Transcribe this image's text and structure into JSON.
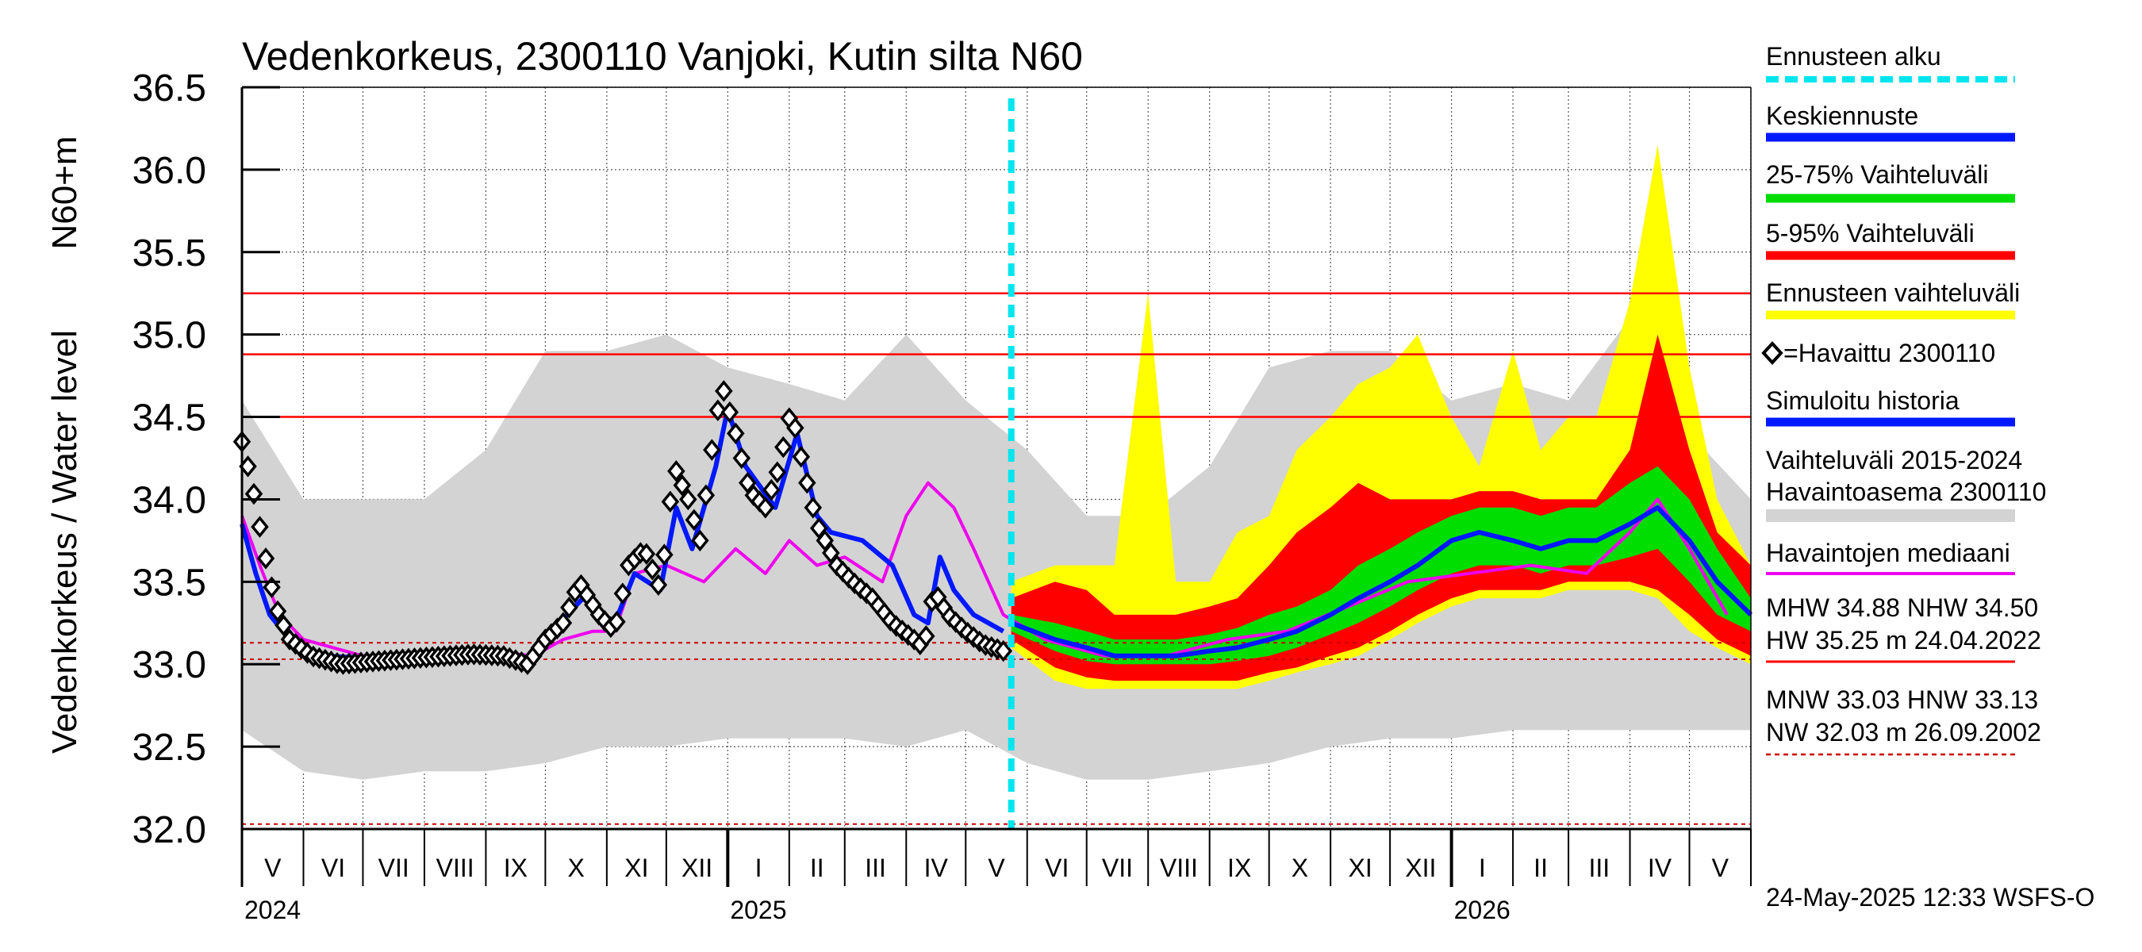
{
  "chart_data": {
    "type": "line",
    "title": "Vedenkorkeus, 2300110 Vanjoki, Kutin silta N60",
    "ylabel": "Vedenkorkeus / Water level",
    "yunit": "N60+m",
    "ylim": [
      32.0,
      36.5
    ],
    "yticks": [
      "32.0",
      "32.5",
      "33.0",
      "33.5",
      "34.0",
      "34.5",
      "35.0",
      "35.5",
      "36.0",
      "36.5"
    ],
    "grid": true,
    "legend_position": "right",
    "x_start": "2024-05-01",
    "x_end": "2026-06-01",
    "forecast_start": "2025-05-24",
    "month_labels": [
      "V",
      "VI",
      "VII",
      "VIII",
      "IX",
      "X",
      "XI",
      "XII",
      "I",
      "II",
      "III",
      "IV",
      "V",
      "VI",
      "VII",
      "VIII",
      "IX",
      "X",
      "XI",
      "XII",
      "I",
      "II",
      "III",
      "IV",
      "V"
    ],
    "year_labels": [
      {
        "label": "2024",
        "date": "2024-05-01"
      },
      {
        "label": "2025",
        "date": "2025-01-01"
      },
      {
        "label": "2026",
        "date": "2026-01-01"
      }
    ],
    "reference_lines": [
      {
        "name": "HW",
        "value": 35.25,
        "style": "solid",
        "color": "#ff0000"
      },
      {
        "name": "MHW",
        "value": 34.88,
        "style": "solid",
        "color": "#ff0000"
      },
      {
        "name": "NHW",
        "value": 34.5,
        "style": "solid",
        "color": "#ff0000"
      },
      {
        "name": "HNW",
        "value": 33.13,
        "style": "dashed",
        "color": "#cc0000"
      },
      {
        "name": "MNW",
        "value": 33.03,
        "style": "dashed",
        "color": "#cc0000"
      },
      {
        "name": "NW",
        "value": 32.03,
        "style": "dashed",
        "color": "#cc0000"
      }
    ],
    "observed": [
      [
        "2024-05-01",
        34.35
      ],
      [
        "2024-05-06",
        34.1
      ],
      [
        "2024-05-12",
        33.7
      ],
      [
        "2024-05-18",
        33.35
      ],
      [
        "2024-05-25",
        33.15
      ],
      [
        "2024-06-05",
        33.05
      ],
      [
        "2024-06-20",
        33.0
      ],
      [
        "2024-07-10",
        33.02
      ],
      [
        "2024-08-01",
        33.04
      ],
      [
        "2024-08-25",
        33.06
      ],
      [
        "2024-09-10",
        33.05
      ],
      [
        "2024-09-22",
        33.0
      ],
      [
        "2024-10-01",
        33.15
      ],
      [
        "2024-10-10",
        33.25
      ],
      [
        "2024-10-18",
        33.5
      ],
      [
        "2024-10-28",
        33.3
      ],
      [
        "2024-11-05",
        33.2
      ],
      [
        "2024-11-12",
        33.6
      ],
      [
        "2024-11-20",
        33.7
      ],
      [
        "2024-11-28",
        33.45
      ],
      [
        "2024-12-05",
        34.2
      ],
      [
        "2024-12-12",
        34.0
      ],
      [
        "2024-12-18",
        33.75
      ],
      [
        "2024-12-24",
        34.3
      ],
      [
        "2024-12-29",
        34.7
      ],
      [
        "2025-01-05",
        34.4
      ],
      [
        "2025-01-12",
        34.05
      ],
      [
        "2025-01-20",
        33.95
      ],
      [
        "2025-01-27",
        34.2
      ],
      [
        "2025-02-02",
        34.55
      ],
      [
        "2025-02-08",
        34.2
      ],
      [
        "2025-02-15",
        33.85
      ],
      [
        "2025-02-25",
        33.6
      ],
      [
        "2025-03-05",
        33.5
      ],
      [
        "2025-03-15",
        33.4
      ],
      [
        "2025-03-25",
        33.25
      ],
      [
        "2025-04-05",
        33.15
      ],
      [
        "2025-04-10",
        33.1
      ],
      [
        "2025-04-15",
        33.45
      ],
      [
        "2025-04-22",
        33.3
      ],
      [
        "2025-05-01",
        33.2
      ],
      [
        "2025-05-10",
        33.12
      ],
      [
        "2025-05-20",
        33.08
      ]
    ],
    "simulated": [
      [
        "2024-05-01",
        33.85
      ],
      [
        "2024-05-08",
        33.55
      ],
      [
        "2024-05-15",
        33.3
      ],
      [
        "2024-05-25",
        33.15
      ],
      [
        "2024-06-10",
        33.05
      ],
      [
        "2024-07-15",
        33.03
      ],
      [
        "2024-08-20",
        33.05
      ],
      [
        "2024-09-20",
        33.02
      ],
      [
        "2024-10-08",
        33.25
      ],
      [
        "2024-10-20",
        33.4
      ],
      [
        "2024-11-05",
        33.25
      ],
      [
        "2024-11-15",
        33.55
      ],
      [
        "2024-11-28",
        33.45
      ],
      [
        "2024-12-06",
        33.95
      ],
      [
        "2024-12-14",
        33.7
      ],
      [
        "2024-12-26",
        34.2
      ],
      [
        "2025-01-01",
        34.55
      ],
      [
        "2025-01-10",
        34.2
      ],
      [
        "2025-01-25",
        33.95
      ],
      [
        "2025-02-05",
        34.4
      ],
      [
        "2025-02-15",
        33.9
      ],
      [
        "2025-02-22",
        33.8
      ],
      [
        "2025-03-10",
        33.75
      ],
      [
        "2025-03-25",
        33.6
      ],
      [
        "2025-04-05",
        33.3
      ],
      [
        "2025-04-12",
        33.25
      ],
      [
        "2025-04-18",
        33.65
      ],
      [
        "2025-04-25",
        33.45
      ],
      [
        "2025-05-05",
        33.3
      ],
      [
        "2025-05-20",
        33.2
      ]
    ],
    "median": [
      [
        "2024-05-01",
        33.9
      ],
      [
        "2024-05-10",
        33.6
      ],
      [
        "2024-05-20",
        33.3
      ],
      [
        "2024-06-01",
        33.15
      ],
      [
        "2024-07-01",
        33.05
      ],
      [
        "2024-08-01",
        33.05
      ],
      [
        "2024-09-01",
        33.08
      ],
      [
        "2024-09-25",
        33.05
      ],
      [
        "2024-10-10",
        33.15
      ],
      [
        "2024-10-25",
        33.2
      ],
      [
        "2024-11-05",
        33.2
      ],
      [
        "2024-11-15",
        33.55
      ],
      [
        "2024-12-01",
        33.6
      ],
      [
        "2024-12-20",
        33.5
      ],
      [
        "2025-01-05",
        33.7
      ],
      [
        "2025-01-20",
        33.55
      ],
      [
        "2025-02-01",
        33.75
      ],
      [
        "2025-02-15",
        33.6
      ],
      [
        "2025-03-01",
        33.65
      ],
      [
        "2025-03-20",
        33.5
      ],
      [
        "2025-04-01",
        33.9
      ],
      [
        "2025-04-12",
        34.1
      ],
      [
        "2025-04-25",
        33.95
      ],
      [
        "2025-05-05",
        33.7
      ],
      [
        "2025-05-20",
        33.3
      ],
      [
        "2025-06-10",
        33.15
      ],
      [
        "2025-07-10",
        33.05
      ],
      [
        "2025-08-10",
        33.05
      ],
      [
        "2025-09-10",
        33.15
      ],
      [
        "2025-10-10",
        33.2
      ],
      [
        "2025-11-10",
        33.35
      ],
      [
        "2025-12-10",
        33.5
      ],
      [
        "2026-01-10",
        33.55
      ],
      [
        "2026-02-10",
        33.6
      ],
      [
        "2026-03-10",
        33.55
      ],
      [
        "2026-04-01",
        33.8
      ],
      [
        "2026-04-15",
        34.0
      ],
      [
        "2026-05-01",
        33.7
      ],
      [
        "2026-05-20",
        33.3
      ]
    ],
    "history_range": {
      "name": "Vaihteluväli 2015-2024 Havaintoasema 2300110",
      "dates": [
        "2024-05-01",
        "2024-06-01",
        "2024-07-01",
        "2024-08-01",
        "2024-09-01",
        "2024-10-01",
        "2024-11-01",
        "2024-12-01",
        "2025-01-01",
        "2025-02-01",
        "2025-03-01",
        "2025-04-01",
        "2025-05-01",
        "2025-06-01",
        "2025-07-01",
        "2025-08-01",
        "2025-09-01",
        "2025-10-01",
        "2025-11-01",
        "2025-12-01",
        "2026-01-01",
        "2026-02-01",
        "2026-03-01",
        "2026-04-01",
        "2026-05-01",
        "2026-06-01"
      ],
      "low": [
        32.6,
        32.35,
        32.3,
        32.35,
        32.35,
        32.4,
        32.5,
        32.5,
        32.55,
        32.55,
        32.55,
        32.5,
        32.6,
        32.4,
        32.3,
        32.3,
        32.35,
        32.4,
        32.5,
        32.55,
        32.55,
        32.6,
        32.6,
        32.6,
        32.6,
        32.6
      ],
      "high": [
        34.6,
        34.0,
        34.0,
        34.0,
        34.3,
        34.9,
        34.9,
        35.0,
        34.8,
        34.7,
        34.6,
        35.0,
        34.6,
        34.3,
        33.9,
        33.9,
        34.2,
        34.8,
        34.9,
        34.9,
        34.6,
        34.7,
        34.6,
        35.1,
        34.4,
        34.0
      ]
    },
    "forecast": {
      "dates": [
        "2025-05-24",
        "2025-06-15",
        "2025-07-01",
        "2025-07-15",
        "2025-08-01",
        "2025-08-15",
        "2025-09-01",
        "2025-09-15",
        "2025-10-01",
        "2025-10-15",
        "2025-11-01",
        "2025-11-15",
        "2025-12-01",
        "2025-12-15",
        "2026-01-01",
        "2026-01-15",
        "2026-02-01",
        "2026-02-15",
        "2026-03-01",
        "2026-03-15",
        "2026-04-01",
        "2026-04-15",
        "2026-05-01",
        "2026-05-15",
        "2026-06-01"
      ],
      "mean": [
        33.25,
        33.15,
        33.1,
        33.05,
        33.05,
        33.05,
        33.08,
        33.1,
        33.15,
        33.2,
        33.3,
        33.4,
        33.5,
        33.6,
        33.75,
        33.8,
        33.75,
        33.7,
        33.75,
        33.75,
        33.85,
        33.95,
        33.75,
        33.5,
        33.3
      ],
      "p25": [
        33.2,
        33.08,
        33.02,
        33.0,
        33.0,
        33.0,
        33.0,
        33.02,
        33.05,
        33.1,
        33.18,
        33.25,
        33.35,
        33.45,
        33.55,
        33.6,
        33.6,
        33.55,
        33.6,
        33.6,
        33.65,
        33.7,
        33.5,
        33.3,
        33.2
      ],
      "p75": [
        33.3,
        33.25,
        33.2,
        33.15,
        33.15,
        33.15,
        33.18,
        33.22,
        33.3,
        33.35,
        33.45,
        33.6,
        33.7,
        33.8,
        33.9,
        33.95,
        33.95,
        33.9,
        33.95,
        33.95,
        34.1,
        34.2,
        34.0,
        33.7,
        33.4
      ],
      "p5": [
        33.15,
        32.98,
        32.92,
        32.9,
        32.9,
        32.9,
        32.9,
        32.9,
        32.95,
        32.98,
        33.05,
        33.1,
        33.2,
        33.3,
        33.4,
        33.45,
        33.45,
        33.45,
        33.5,
        33.5,
        33.5,
        33.45,
        33.3,
        33.15,
        33.05
      ],
      "p95": [
        33.4,
        33.5,
        33.45,
        33.3,
        33.3,
        33.3,
        33.35,
        33.4,
        33.6,
        33.8,
        33.95,
        34.1,
        34.0,
        34.0,
        34.0,
        34.05,
        34.05,
        34.0,
        34.0,
        34.0,
        34.3,
        35.0,
        34.3,
        33.8,
        33.6
      ],
      "min": [
        33.1,
        32.9,
        32.85,
        32.85,
        32.85,
        32.85,
        32.85,
        32.85,
        32.9,
        32.95,
        33.0,
        33.05,
        33.15,
        33.25,
        33.35,
        33.4,
        33.4,
        33.4,
        33.45,
        33.45,
        33.45,
        33.4,
        33.2,
        33.1,
        33.0
      ],
      "max": [
        33.5,
        33.6,
        33.6,
        33.6,
        35.25,
        33.5,
        33.5,
        33.8,
        33.9,
        34.3,
        34.5,
        34.7,
        34.8,
        35.0,
        34.5,
        34.2,
        34.9,
        34.3,
        34.5,
        34.5,
        35.2,
        36.15,
        34.8,
        34.0,
        33.6
      ]
    }
  },
  "legend": {
    "items": [
      {
        "label": "Ennusteen alku",
        "color": "#00e5ee",
        "style": "dashed"
      },
      {
        "label": "Keskiennuste",
        "color": "#0018ff",
        "style": "solid"
      },
      {
        "label": "25-75% Vaihteluväli",
        "color": "#00dd00",
        "style": "solid"
      },
      {
        "label": "5-95% Vaihteluväli",
        "color": "#ff0000",
        "style": "solid"
      },
      {
        "label": "Ennusteen vaihteluväli",
        "color": "#ffff00",
        "style": "solid"
      },
      {
        "label": "=Havaittu 2300110",
        "color": "#000000",
        "style": "marker"
      },
      {
        "label": "Simuloitu historia",
        "color": "#0018ff",
        "style": "solid"
      },
      {
        "label": "Vaihteluväli 2015-2024",
        "label2": " Havaintoasema 2300110",
        "color": "#d3d3d3",
        "style": "solid"
      },
      {
        "label": "Havaintojen mediaani",
        "color": "#ee00ee",
        "style": "solid"
      }
    ],
    "stats_high_1": "MHW  34.88 NHW  34.50",
    "stats_high_2": "HW  35.25 m 24.04.2022",
    "stats_low_1": "MNW  33.03 HNW  33.13",
    "stats_low_2": "NW  32.03 m 26.09.2002"
  },
  "footer": "24-May-2025 12:33 WSFS-O",
  "colors": {
    "forecast_start": "#00e5ee",
    "mean": "#0018ff",
    "p25_75": "#00dd00",
    "p5_95": "#ff0000",
    "forecast_range": "#ffff00",
    "history_range": "#d3d3d3",
    "median": "#ee00ee",
    "observed": "#000000",
    "simulated": "#0018ff",
    "reference": "#ff0000"
  }
}
